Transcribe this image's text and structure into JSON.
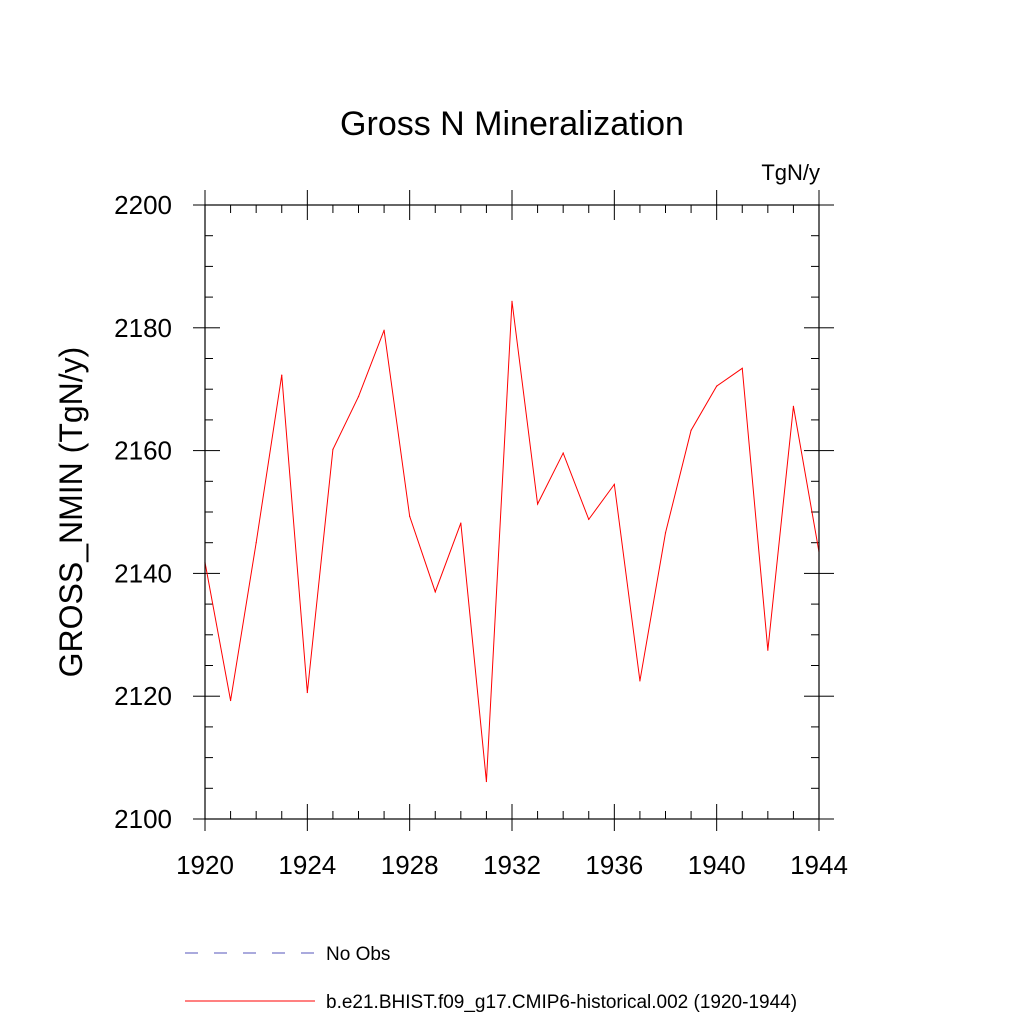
{
  "chart_data": {
    "type": "line",
    "title": "Gross N Mineralization",
    "units_label": "TgN/y",
    "ylabel": "GROSS_NMIN  (TgN/y)",
    "xlabel": "",
    "xlim": [
      1920,
      1944
    ],
    "ylim": [
      2100,
      2200
    ],
    "x_major_ticks": [
      1920,
      1924,
      1928,
      1932,
      1936,
      1940,
      1944
    ],
    "y_major_ticks": [
      2100,
      2120,
      2140,
      2160,
      2180,
      2200
    ],
    "x_tick_labels": [
      "1920",
      "1924",
      "1928",
      "1932",
      "1936",
      "1940",
      "1944"
    ],
    "y_tick_labels": [
      "2100",
      "2120",
      "2140",
      "2160",
      "2180",
      "2200"
    ],
    "grid": false,
    "legend_position": "bottom",
    "series": [
      {
        "name": "b.e21.BHIST.f09_g17.CMIP6-historical.002 (1920-1944)",
        "color": "#ff0000",
        "style": "solid",
        "x": [
          1920,
          1921,
          1922,
          1923,
          1924,
          1925,
          1926,
          1927,
          1928,
          1929,
          1930,
          1931,
          1932,
          1933,
          1934,
          1935,
          1936,
          1937,
          1938,
          1939,
          1940,
          1941,
          1942,
          1943,
          1944
        ],
        "values": [
          2141.8,
          2119.3,
          2145.0,
          2172.3,
          2120.6,
          2160.2,
          2168.8,
          2179.6,
          2149.3,
          2137.0,
          2148.2,
          2106.1,
          2184.3,
          2151.3,
          2159.6,
          2148.8,
          2154.5,
          2122.5,
          2146.6,
          2163.3,
          2170.5,
          2173.4,
          2127.5,
          2167.2,
          2143.5
        ]
      },
      {
        "name": "No Obs",
        "color": "#5555bb",
        "style": "dashed",
        "x": [],
        "values": []
      }
    ]
  }
}
